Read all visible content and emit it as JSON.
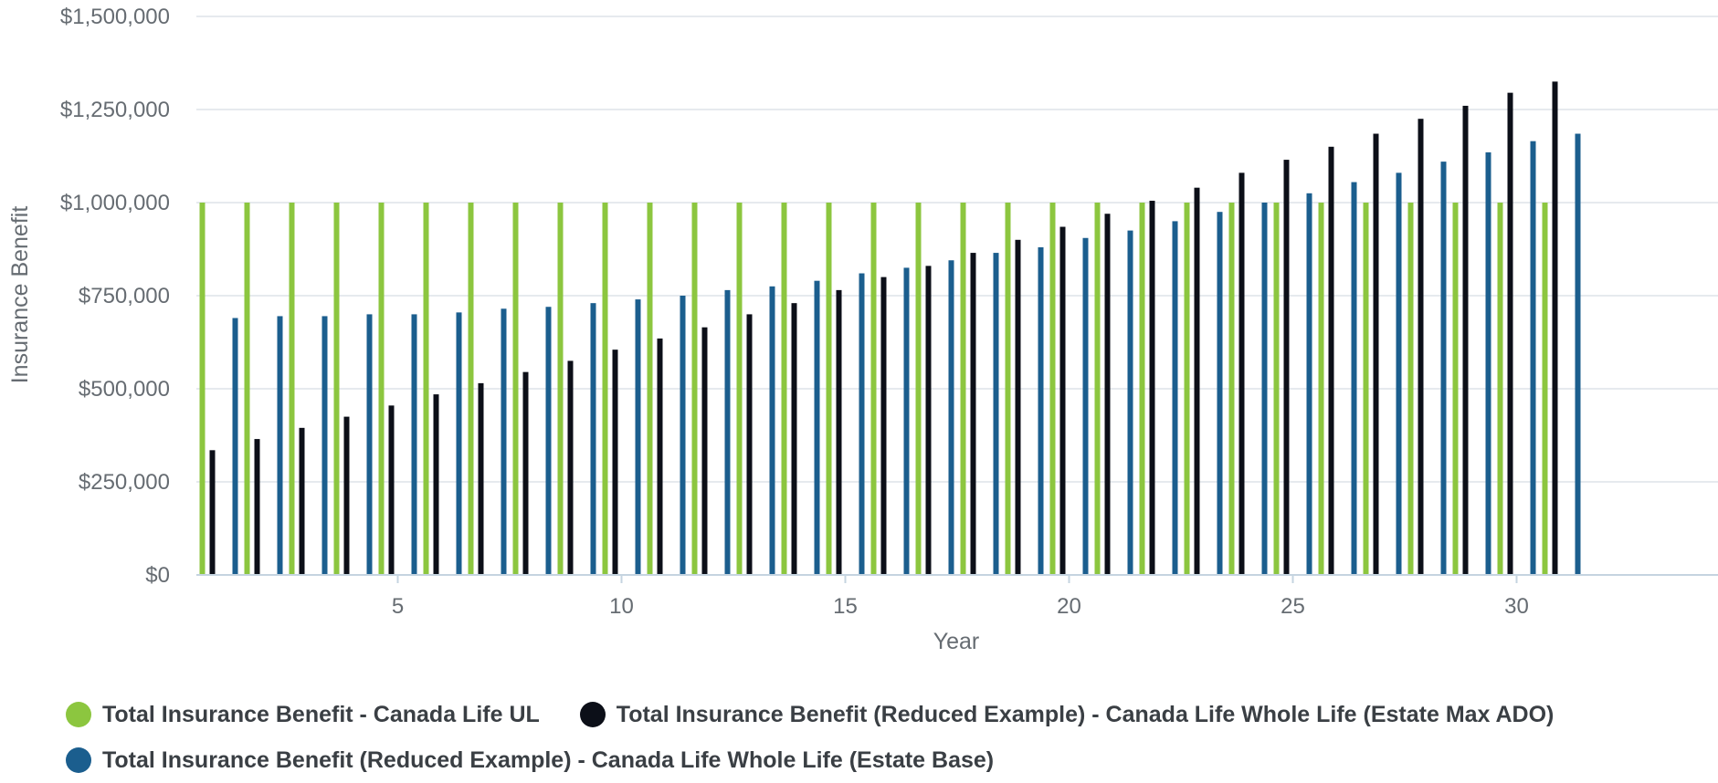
{
  "colors": {
    "ul": "#8cc63f",
    "estate_max": "#0c0f18",
    "estate_base": "#1b5e8e",
    "grid": "#dde3e8",
    "axis": "#c5d4e0",
    "text": "#666c72"
  },
  "chart_data": {
    "type": "bar",
    "ylabel": "Insurance Benefit",
    "xlabel": "Year",
    "ylim": [
      0,
      1500000
    ],
    "xlim": [
      0.5,
      34.5
    ],
    "y_ticks": [
      0,
      250000,
      500000,
      750000,
      1000000,
      1250000,
      1500000
    ],
    "y_tick_labels": [
      "$0",
      "$250,000",
      "$500,000",
      "$750,000",
      "$1,000,000",
      "$1,250,000",
      "$1,500,000"
    ],
    "x_ticks": [
      5,
      10,
      15,
      20,
      25,
      30
    ],
    "x_tick_labels": [
      "5",
      "10",
      "15",
      "20",
      "25",
      "30"
    ],
    "grid": true,
    "legend_position": "bottom",
    "x": [
      1,
      2,
      3,
      4,
      5,
      6,
      7,
      8,
      9,
      10,
      11,
      12,
      13,
      14,
      15,
      16,
      17,
      18,
      19,
      20,
      21,
      22,
      23,
      24,
      25,
      26,
      27,
      28,
      29,
      30,
      31
    ],
    "series": [
      {
        "name": "Total Insurance Benefit - Canada Life UL",
        "color": "#8cc63f",
        "values": [
          1000000,
          1000000,
          1000000,
          1000000,
          1000000,
          1000000,
          1000000,
          1000000,
          1000000,
          1000000,
          1000000,
          1000000,
          1000000,
          1000000,
          1000000,
          1000000,
          1000000,
          1000000,
          1000000,
          1000000,
          1000000,
          1000000,
          1000000,
          1000000,
          1000000,
          1000000,
          1000000,
          1000000,
          1000000,
          1000000,
          1000000
        ]
      },
      {
        "name": "Total Insurance Benefit (Reduced Example) - Canada Life Whole Life (Estate Max ADO)",
        "color": "#0c0f18",
        "values": [
          335000,
          365000,
          395000,
          425000,
          455000,
          485000,
          515000,
          545000,
          575000,
          605000,
          635000,
          665000,
          700000,
          730000,
          765000,
          800000,
          830000,
          865000,
          900000,
          935000,
          970000,
          1005000,
          1040000,
          1080000,
          1115000,
          1150000,
          1185000,
          1225000,
          1260000,
          1295000,
          1325000
        ]
      },
      {
        "name": "Total Insurance Benefit (Reduced Example) - Canada Life Whole Life (Estate Base)",
        "color": "#1b5e8e",
        "values": [
          690000,
          695000,
          695000,
          700000,
          700000,
          705000,
          715000,
          720000,
          730000,
          740000,
          750000,
          765000,
          775000,
          790000,
          810000,
          825000,
          845000,
          865000,
          880000,
          905000,
          925000,
          950000,
          975000,
          1000000,
          1025000,
          1055000,
          1080000,
          1110000,
          1135000,
          1165000,
          1185000
        ]
      }
    ]
  }
}
